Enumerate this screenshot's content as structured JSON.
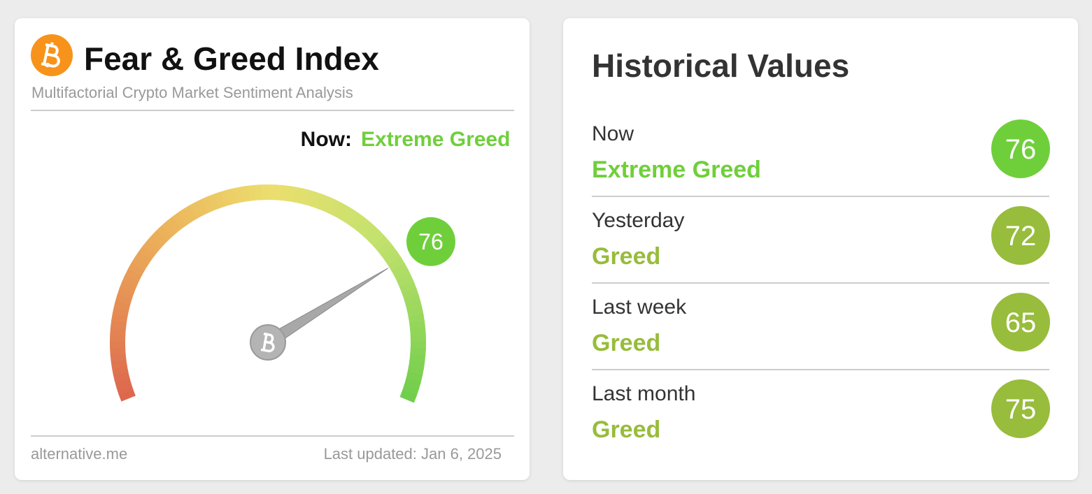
{
  "index_card": {
    "title": "Fear & Greed Index",
    "subtitle": "Multifactorial Crypto Market Sentiment Analysis",
    "now_label": "Now:",
    "classification": "Extreme Greed",
    "classification_color": "#6fcf3b",
    "gauge": {
      "value": 76,
      "range": [
        0,
        100
      ],
      "color": "#6fcf3b"
    },
    "source": "alternative.me",
    "last_updated": "Last updated: Jan 6, 2025"
  },
  "history_card": {
    "title": "Historical Values",
    "rows": [
      {
        "label": "Now",
        "classification": "Extreme Greed",
        "value": 76,
        "color": "#6fcf3b"
      },
      {
        "label": "Yesterday",
        "classification": "Greed",
        "value": 72,
        "color": "#98bc3c"
      },
      {
        "label": "Last week",
        "classification": "Greed",
        "value": 65,
        "color": "#98bc3c"
      },
      {
        "label": "Last month",
        "classification": "Greed",
        "value": 75,
        "color": "#98bc3c"
      }
    ]
  }
}
